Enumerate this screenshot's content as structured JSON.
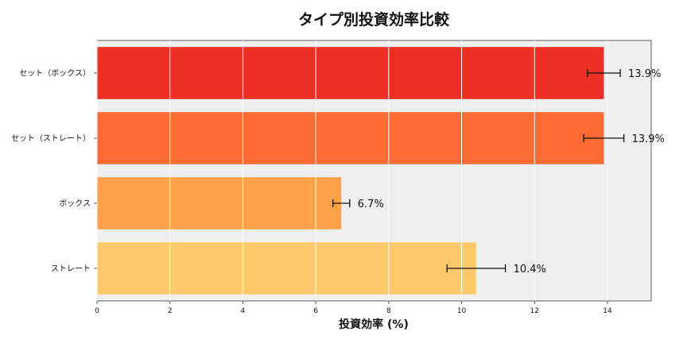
{
  "chart_data": {
    "type": "bar",
    "orientation": "horizontal",
    "title": "タイプ別投資効率比較",
    "xlabel": "投資効率 (%)",
    "ylabel": "",
    "categories": [
      "セット（ボックス）",
      "セット（ストレート）",
      "ボックス",
      "ストレート"
    ],
    "values": [
      13.9,
      13.9,
      6.7,
      10.4
    ],
    "value_labels": [
      "13.9%",
      "13.9%",
      "6.7%",
      "10.4%"
    ],
    "error": [
      0.45,
      0.55,
      0.23,
      0.8
    ],
    "colors": [
      "#ee3024",
      "#fc6b33",
      "#fda24a",
      "#fdc96a"
    ],
    "xlim": [
      0,
      15.2
    ],
    "xticks": [
      "0",
      "2",
      "4",
      "6",
      "8",
      "10",
      "12",
      "14"
    ],
    "grid": true,
    "background": "#efefef"
  }
}
